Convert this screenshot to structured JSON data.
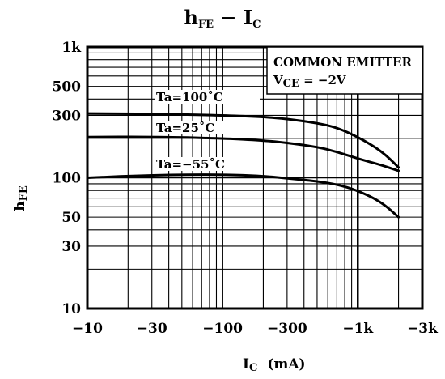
{
  "chart_data": {
    "type": "line",
    "title": {
      "main": "h",
      "main_sub": "FE",
      "sep": " − ",
      "second": "I",
      "second_sub": "C"
    },
    "xlabel": {
      "main": "I",
      "sub": "C",
      "unit": "(mA)"
    },
    "ylabel": {
      "main": "h",
      "sub": "FE"
    },
    "x_scale": "log",
    "y_scale": "log",
    "xlim": [
      -10,
      -3000
    ],
    "ylim": [
      10,
      1000
    ],
    "x_ticks": [
      {
        "value": -10,
        "label": "−10"
      },
      {
        "value": -30,
        "label": "−30"
      },
      {
        "value": -100,
        "label": "−100"
      },
      {
        "value": -300,
        "label": "−300"
      },
      {
        "value": -1000,
        "label": "−1k"
      },
      {
        "value": -3000,
        "label": "−3k"
      }
    ],
    "y_ticks": [
      {
        "value": 10,
        "label": "10"
      },
      {
        "value": 30,
        "label": "30"
      },
      {
        "value": 50,
        "label": "50"
      },
      {
        "value": 100,
        "label": "100"
      },
      {
        "value": 300,
        "label": "300"
      },
      {
        "value": 500,
        "label": "500"
      },
      {
        "value": 1000,
        "label": "1k"
      }
    ],
    "grid": true,
    "annotation_box": {
      "line1": "COMMON  EMITTER",
      "line2_main": "V",
      "line2_sub": "CE",
      "line2_rest": " = −2V"
    },
    "series": [
      {
        "name": "Ta=100˚C",
        "x": [
          -10,
          -30,
          -100,
          -200,
          -300,
          -500,
          -700,
          -1000,
          -1500,
          -2000
        ],
        "y": [
          310,
          308,
          300,
          292,
          282,
          262,
          242,
          205,
          160,
          120
        ]
      },
      {
        "name": "Ta=25˚C",
        "x": [
          -10,
          -30,
          -100,
          -200,
          -300,
          -500,
          -700,
          -1000,
          -1500,
          -2000
        ],
        "y": [
          205,
          206,
          200,
          193,
          185,
          172,
          158,
          140,
          125,
          113
        ]
      },
      {
        "name": "Ta=−55˚C",
        "x": [
          -10,
          -30,
          -100,
          -200,
          -300,
          -500,
          -700,
          -1000,
          -1500,
          -2000
        ],
        "y": [
          100,
          105,
          106,
          103,
          99,
          94,
          89,
          80,
          65,
          50
        ]
      }
    ]
  }
}
